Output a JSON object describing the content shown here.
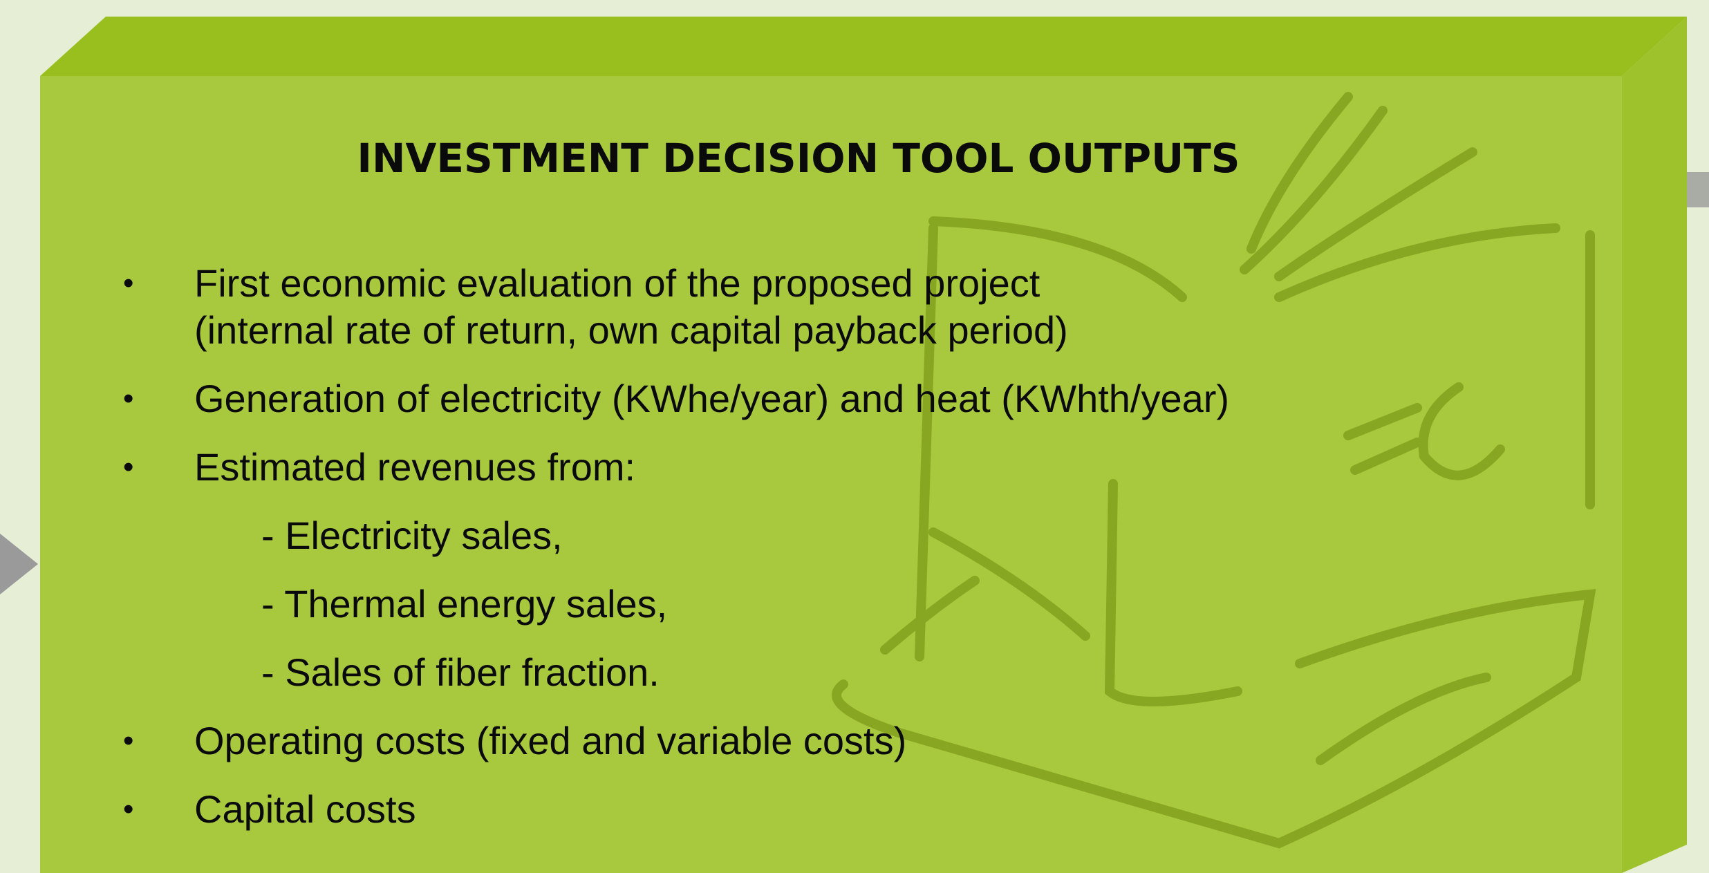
{
  "title": "INVESTMENT DECISION TOOL OUTPUTS",
  "items": [
    {
      "lines": [
        "First economic evaluation of the proposed project",
        "(internal rate of return, own capital payback period)"
      ]
    },
    {
      "lines": [
        "Generation of electricity (KWhe/year) and heat (KWhth/year)"
      ]
    },
    {
      "lines": [
        "Estimated revenues from:"
      ],
      "sub_items": [
        "- Electricity sales,",
        "- Thermal energy sales,",
        "- Sales of fiber fraction."
      ]
    },
    {
      "lines": [
        "Operating costs (fixed and variable costs)"
      ]
    },
    {
      "lines": [
        "Capital costs"
      ]
    }
  ]
}
